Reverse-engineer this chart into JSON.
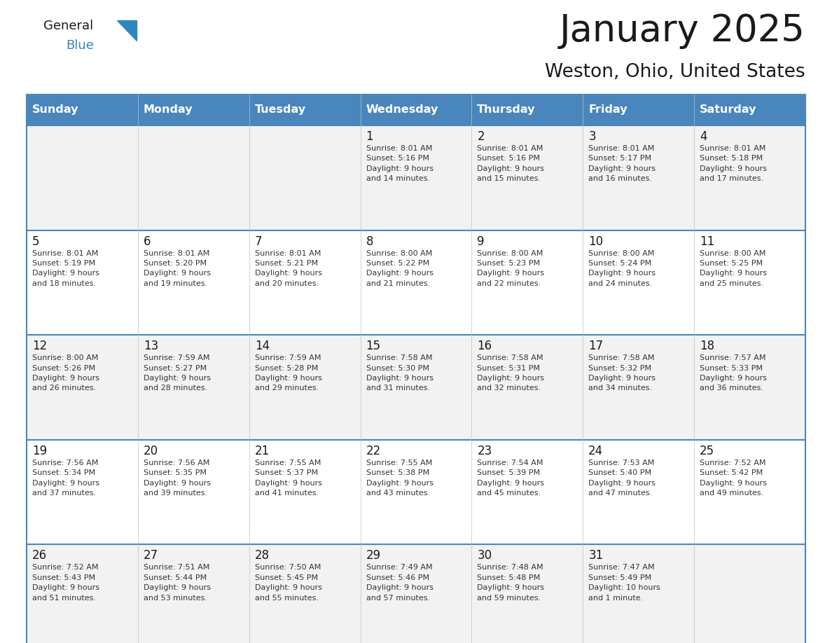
{
  "title": "January 2025",
  "subtitle": "Weston, Ohio, United States",
  "header_bg": "#4a86be",
  "header_text_color": "#ffffff",
  "row_bg": "#f2f2f2",
  "row_bg_alt": "#ffffff",
  "border_color": "#4a86be",
  "cell_border_color": "#c0c0c0",
  "day_num_color": "#1a1a1a",
  "info_text_color": "#333333",
  "title_color": "#1a1a1a",
  "subtitle_color": "#1a1a1a",
  "logo_general_color": "#1a1a1a",
  "logo_blue_color": "#2e86c1",
  "logo_triangle_color": "#2e86c1",
  "day_headers": [
    "Sunday",
    "Monday",
    "Tuesday",
    "Wednesday",
    "Thursday",
    "Friday",
    "Saturday"
  ],
  "weeks": [
    [
      {
        "day": "",
        "info": ""
      },
      {
        "day": "",
        "info": ""
      },
      {
        "day": "",
        "info": ""
      },
      {
        "day": "1",
        "info": "Sunrise: 8:01 AM\nSunset: 5:16 PM\nDaylight: 9 hours\nand 14 minutes."
      },
      {
        "day": "2",
        "info": "Sunrise: 8:01 AM\nSunset: 5:16 PM\nDaylight: 9 hours\nand 15 minutes."
      },
      {
        "day": "3",
        "info": "Sunrise: 8:01 AM\nSunset: 5:17 PM\nDaylight: 9 hours\nand 16 minutes."
      },
      {
        "day": "4",
        "info": "Sunrise: 8:01 AM\nSunset: 5:18 PM\nDaylight: 9 hours\nand 17 minutes."
      }
    ],
    [
      {
        "day": "5",
        "info": "Sunrise: 8:01 AM\nSunset: 5:19 PM\nDaylight: 9 hours\nand 18 minutes."
      },
      {
        "day": "6",
        "info": "Sunrise: 8:01 AM\nSunset: 5:20 PM\nDaylight: 9 hours\nand 19 minutes."
      },
      {
        "day": "7",
        "info": "Sunrise: 8:01 AM\nSunset: 5:21 PM\nDaylight: 9 hours\nand 20 minutes."
      },
      {
        "day": "8",
        "info": "Sunrise: 8:00 AM\nSunset: 5:22 PM\nDaylight: 9 hours\nand 21 minutes."
      },
      {
        "day": "9",
        "info": "Sunrise: 8:00 AM\nSunset: 5:23 PM\nDaylight: 9 hours\nand 22 minutes."
      },
      {
        "day": "10",
        "info": "Sunrise: 8:00 AM\nSunset: 5:24 PM\nDaylight: 9 hours\nand 24 minutes."
      },
      {
        "day": "11",
        "info": "Sunrise: 8:00 AM\nSunset: 5:25 PM\nDaylight: 9 hours\nand 25 minutes."
      }
    ],
    [
      {
        "day": "12",
        "info": "Sunrise: 8:00 AM\nSunset: 5:26 PM\nDaylight: 9 hours\nand 26 minutes."
      },
      {
        "day": "13",
        "info": "Sunrise: 7:59 AM\nSunset: 5:27 PM\nDaylight: 9 hours\nand 28 minutes."
      },
      {
        "day": "14",
        "info": "Sunrise: 7:59 AM\nSunset: 5:28 PM\nDaylight: 9 hours\nand 29 minutes."
      },
      {
        "day": "15",
        "info": "Sunrise: 7:58 AM\nSunset: 5:30 PM\nDaylight: 9 hours\nand 31 minutes."
      },
      {
        "day": "16",
        "info": "Sunrise: 7:58 AM\nSunset: 5:31 PM\nDaylight: 9 hours\nand 32 minutes."
      },
      {
        "day": "17",
        "info": "Sunrise: 7:58 AM\nSunset: 5:32 PM\nDaylight: 9 hours\nand 34 minutes."
      },
      {
        "day": "18",
        "info": "Sunrise: 7:57 AM\nSunset: 5:33 PM\nDaylight: 9 hours\nand 36 minutes."
      }
    ],
    [
      {
        "day": "19",
        "info": "Sunrise: 7:56 AM\nSunset: 5:34 PM\nDaylight: 9 hours\nand 37 minutes."
      },
      {
        "day": "20",
        "info": "Sunrise: 7:56 AM\nSunset: 5:35 PM\nDaylight: 9 hours\nand 39 minutes."
      },
      {
        "day": "21",
        "info": "Sunrise: 7:55 AM\nSunset: 5:37 PM\nDaylight: 9 hours\nand 41 minutes."
      },
      {
        "day": "22",
        "info": "Sunrise: 7:55 AM\nSunset: 5:38 PM\nDaylight: 9 hours\nand 43 minutes."
      },
      {
        "day": "23",
        "info": "Sunrise: 7:54 AM\nSunset: 5:39 PM\nDaylight: 9 hours\nand 45 minutes."
      },
      {
        "day": "24",
        "info": "Sunrise: 7:53 AM\nSunset: 5:40 PM\nDaylight: 9 hours\nand 47 minutes."
      },
      {
        "day": "25",
        "info": "Sunrise: 7:52 AM\nSunset: 5:42 PM\nDaylight: 9 hours\nand 49 minutes."
      }
    ],
    [
      {
        "day": "26",
        "info": "Sunrise: 7:52 AM\nSunset: 5:43 PM\nDaylight: 9 hours\nand 51 minutes."
      },
      {
        "day": "27",
        "info": "Sunrise: 7:51 AM\nSunset: 5:44 PM\nDaylight: 9 hours\nand 53 minutes."
      },
      {
        "day": "28",
        "info": "Sunrise: 7:50 AM\nSunset: 5:45 PM\nDaylight: 9 hours\nand 55 minutes."
      },
      {
        "day": "29",
        "info": "Sunrise: 7:49 AM\nSunset: 5:46 PM\nDaylight: 9 hours\nand 57 minutes."
      },
      {
        "day": "30",
        "info": "Sunrise: 7:48 AM\nSunset: 5:48 PM\nDaylight: 9 hours\nand 59 minutes."
      },
      {
        "day": "31",
        "info": "Sunrise: 7:47 AM\nSunset: 5:49 PM\nDaylight: 10 hours\nand 1 minute."
      },
      {
        "day": "",
        "info": ""
      }
    ]
  ]
}
